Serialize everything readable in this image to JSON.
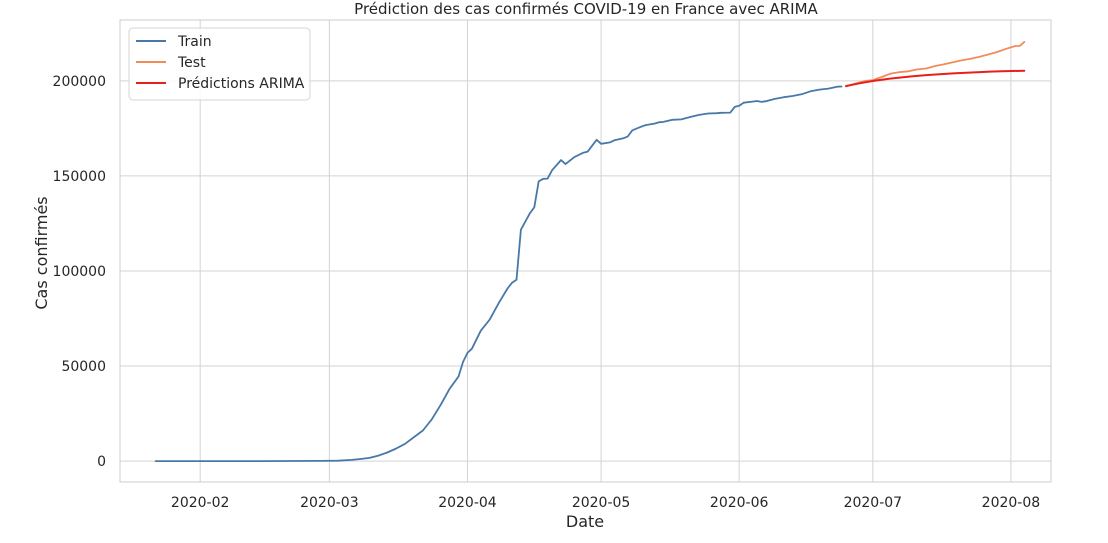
{
  "chart_data": {
    "type": "line",
    "title": "Prédiction des cas confirmés COVID-19 en France avec ARIMA",
    "xlabel": "Date",
    "ylabel": "Cas confirmés",
    "x_ticks": [
      "2020-02",
      "2020-03",
      "2020-04",
      "2020-05",
      "2020-06",
      "2020-07",
      "2020-08"
    ],
    "y_ticks": [
      "0",
      "50000",
      "100000",
      "150000",
      "200000"
    ],
    "xlim": [
      "2020-01-14",
      "2020-08-10"
    ],
    "ylim": [
      -11000,
      232000
    ],
    "grid": true,
    "legend_position": "top-left",
    "series": [
      {
        "name": "Train",
        "color": "#4878a8",
        "points": [
          [
            "2020-01-22",
            0
          ],
          [
            "2020-02-01",
            0
          ],
          [
            "2020-02-15",
            0
          ],
          [
            "2020-02-28",
            100
          ],
          [
            "2020-03-03",
            200
          ],
          [
            "2020-03-06",
            600
          ],
          [
            "2020-03-08",
            1100
          ],
          [
            "2020-03-10",
            1700
          ],
          [
            "2020-03-12",
            2900
          ],
          [
            "2020-03-14",
            4500
          ],
          [
            "2020-03-16",
            6600
          ],
          [
            "2020-03-18",
            9100
          ],
          [
            "2020-03-20",
            12600
          ],
          [
            "2020-03-22",
            16100
          ],
          [
            "2020-03-24",
            22000
          ],
          [
            "2020-03-26",
            29600
          ],
          [
            "2020-03-28",
            38000
          ],
          [
            "2020-03-30",
            44500
          ],
          [
            "2020-03-31",
            52100
          ],
          [
            "2020-04-01",
            56900
          ],
          [
            "2020-04-02",
            59100
          ],
          [
            "2020-04-04",
            68600
          ],
          [
            "2020-04-06",
            74400
          ],
          [
            "2020-04-08",
            83000
          ],
          [
            "2020-04-10",
            90800
          ],
          [
            "2020-04-11",
            93800
          ],
          [
            "2020-04-12",
            95400
          ],
          [
            "2020-04-13",
            121700
          ],
          [
            "2020-04-15",
            130300
          ],
          [
            "2020-04-16",
            133500
          ],
          [
            "2020-04-17",
            147100
          ],
          [
            "2020-04-18",
            148500
          ],
          [
            "2020-04-19",
            148600
          ],
          [
            "2020-04-20",
            153000
          ],
          [
            "2020-04-22",
            158300
          ],
          [
            "2020-04-23",
            156200
          ],
          [
            "2020-04-25",
            159900
          ],
          [
            "2020-04-27",
            162200
          ],
          [
            "2020-04-28",
            162800
          ],
          [
            "2020-04-30",
            169000
          ],
          [
            "2020-05-01",
            166900
          ],
          [
            "2020-05-03",
            167600
          ],
          [
            "2020-05-04",
            168800
          ],
          [
            "2020-05-06",
            169800
          ],
          [
            "2020-05-07",
            170800
          ],
          [
            "2020-05-08",
            174000
          ],
          [
            "2020-05-10",
            175900
          ],
          [
            "2020-05-11",
            176700
          ],
          [
            "2020-05-13",
            177500
          ],
          [
            "2020-05-14",
            178200
          ],
          [
            "2020-05-15",
            178400
          ],
          [
            "2020-05-17",
            179500
          ],
          [
            "2020-05-19",
            179700
          ],
          [
            "2020-05-21",
            181000
          ],
          [
            "2020-05-23",
            182100
          ],
          [
            "2020-05-25",
            182800
          ],
          [
            "2020-05-27",
            183000
          ],
          [
            "2020-05-28",
            183200
          ],
          [
            "2020-05-30",
            183300
          ],
          [
            "2020-05-31",
            186300
          ],
          [
            "2020-06-01",
            186900
          ],
          [
            "2020-06-02",
            188500
          ],
          [
            "2020-06-04",
            189100
          ],
          [
            "2020-06-05",
            189400
          ],
          [
            "2020-06-06",
            188900
          ],
          [
            "2020-06-07",
            189300
          ],
          [
            "2020-06-09",
            190500
          ],
          [
            "2020-06-11",
            191400
          ],
          [
            "2020-06-13",
            192000
          ],
          [
            "2020-06-15",
            192900
          ],
          [
            "2020-06-17",
            194500
          ],
          [
            "2020-06-19",
            195400
          ],
          [
            "2020-06-21",
            195900
          ],
          [
            "2020-06-23",
            196900
          ],
          [
            "2020-06-24",
            197000
          ]
        ]
      },
      {
        "name": "Test",
        "color": "#f28b5a",
        "points": [
          [
            "2020-06-25",
            197100
          ],
          [
            "2020-06-27",
            198500
          ],
          [
            "2020-06-29",
            199800
          ],
          [
            "2020-07-01",
            200400
          ],
          [
            "2020-07-03",
            202000
          ],
          [
            "2020-07-05",
            203800
          ],
          [
            "2020-07-07",
            204600
          ],
          [
            "2020-07-09",
            205000
          ],
          [
            "2020-07-11",
            206000
          ],
          [
            "2020-07-13",
            206500
          ],
          [
            "2020-07-15",
            207800
          ],
          [
            "2020-07-17",
            208700
          ],
          [
            "2020-07-19",
            209800
          ],
          [
            "2020-07-21",
            210800
          ],
          [
            "2020-07-23",
            211600
          ],
          [
            "2020-07-25",
            212700
          ],
          [
            "2020-07-27",
            213900
          ],
          [
            "2020-07-29",
            215200
          ],
          [
            "2020-07-31",
            216900
          ],
          [
            "2020-08-02",
            218300
          ],
          [
            "2020-08-03",
            218400
          ],
          [
            "2020-08-04",
            220500
          ]
        ]
      },
      {
        "name": "Prédictions ARIMA",
        "color": "#e8201a",
        "points": [
          [
            "2020-06-25",
            197300
          ],
          [
            "2020-06-28",
            198700
          ],
          [
            "2020-07-01",
            199900
          ],
          [
            "2020-07-04",
            200900
          ],
          [
            "2020-07-07",
            201700
          ],
          [
            "2020-07-10",
            202400
          ],
          [
            "2020-07-13",
            203000
          ],
          [
            "2020-07-16",
            203500
          ],
          [
            "2020-07-19",
            203900
          ],
          [
            "2020-07-22",
            204300
          ],
          [
            "2020-07-25",
            204600
          ],
          [
            "2020-07-28",
            204900
          ],
          [
            "2020-07-31",
            205100
          ],
          [
            "2020-08-04",
            205300
          ]
        ]
      }
    ]
  }
}
